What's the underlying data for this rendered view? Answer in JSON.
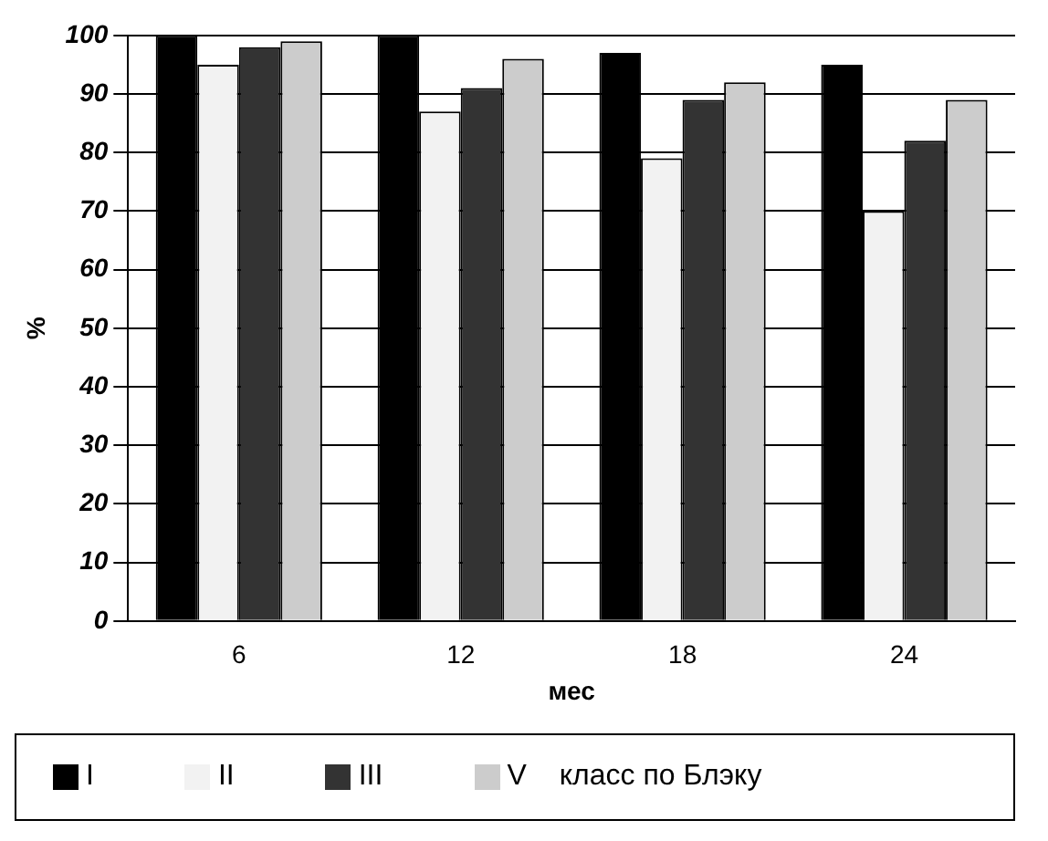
{
  "chart_data": {
    "type": "bar",
    "xlabel": "мес",
    "ylabel": "%",
    "legend_title": "класс по Блэку",
    "categories": [
      "6",
      "12",
      "18",
      "24"
    ],
    "series": [
      {
        "name": "I",
        "color": "#000000",
        "values": [
          100,
          100,
          97,
          95
        ]
      },
      {
        "name": "II",
        "color": "#f2f2f2",
        "values": [
          95,
          87,
          79,
          70
        ]
      },
      {
        "name": "III",
        "color": "#333333",
        "values": [
          98,
          91,
          89,
          82
        ]
      },
      {
        "name": "V",
        "color": "#cccccc",
        "values": [
          99,
          96,
          92,
          89
        ]
      }
    ],
    "ylim": [
      0,
      100
    ],
    "yticks": [
      0,
      10,
      20,
      30,
      40,
      50,
      60,
      70,
      80,
      90,
      100
    ],
    "grid": "y",
    "legend": "bottom"
  }
}
